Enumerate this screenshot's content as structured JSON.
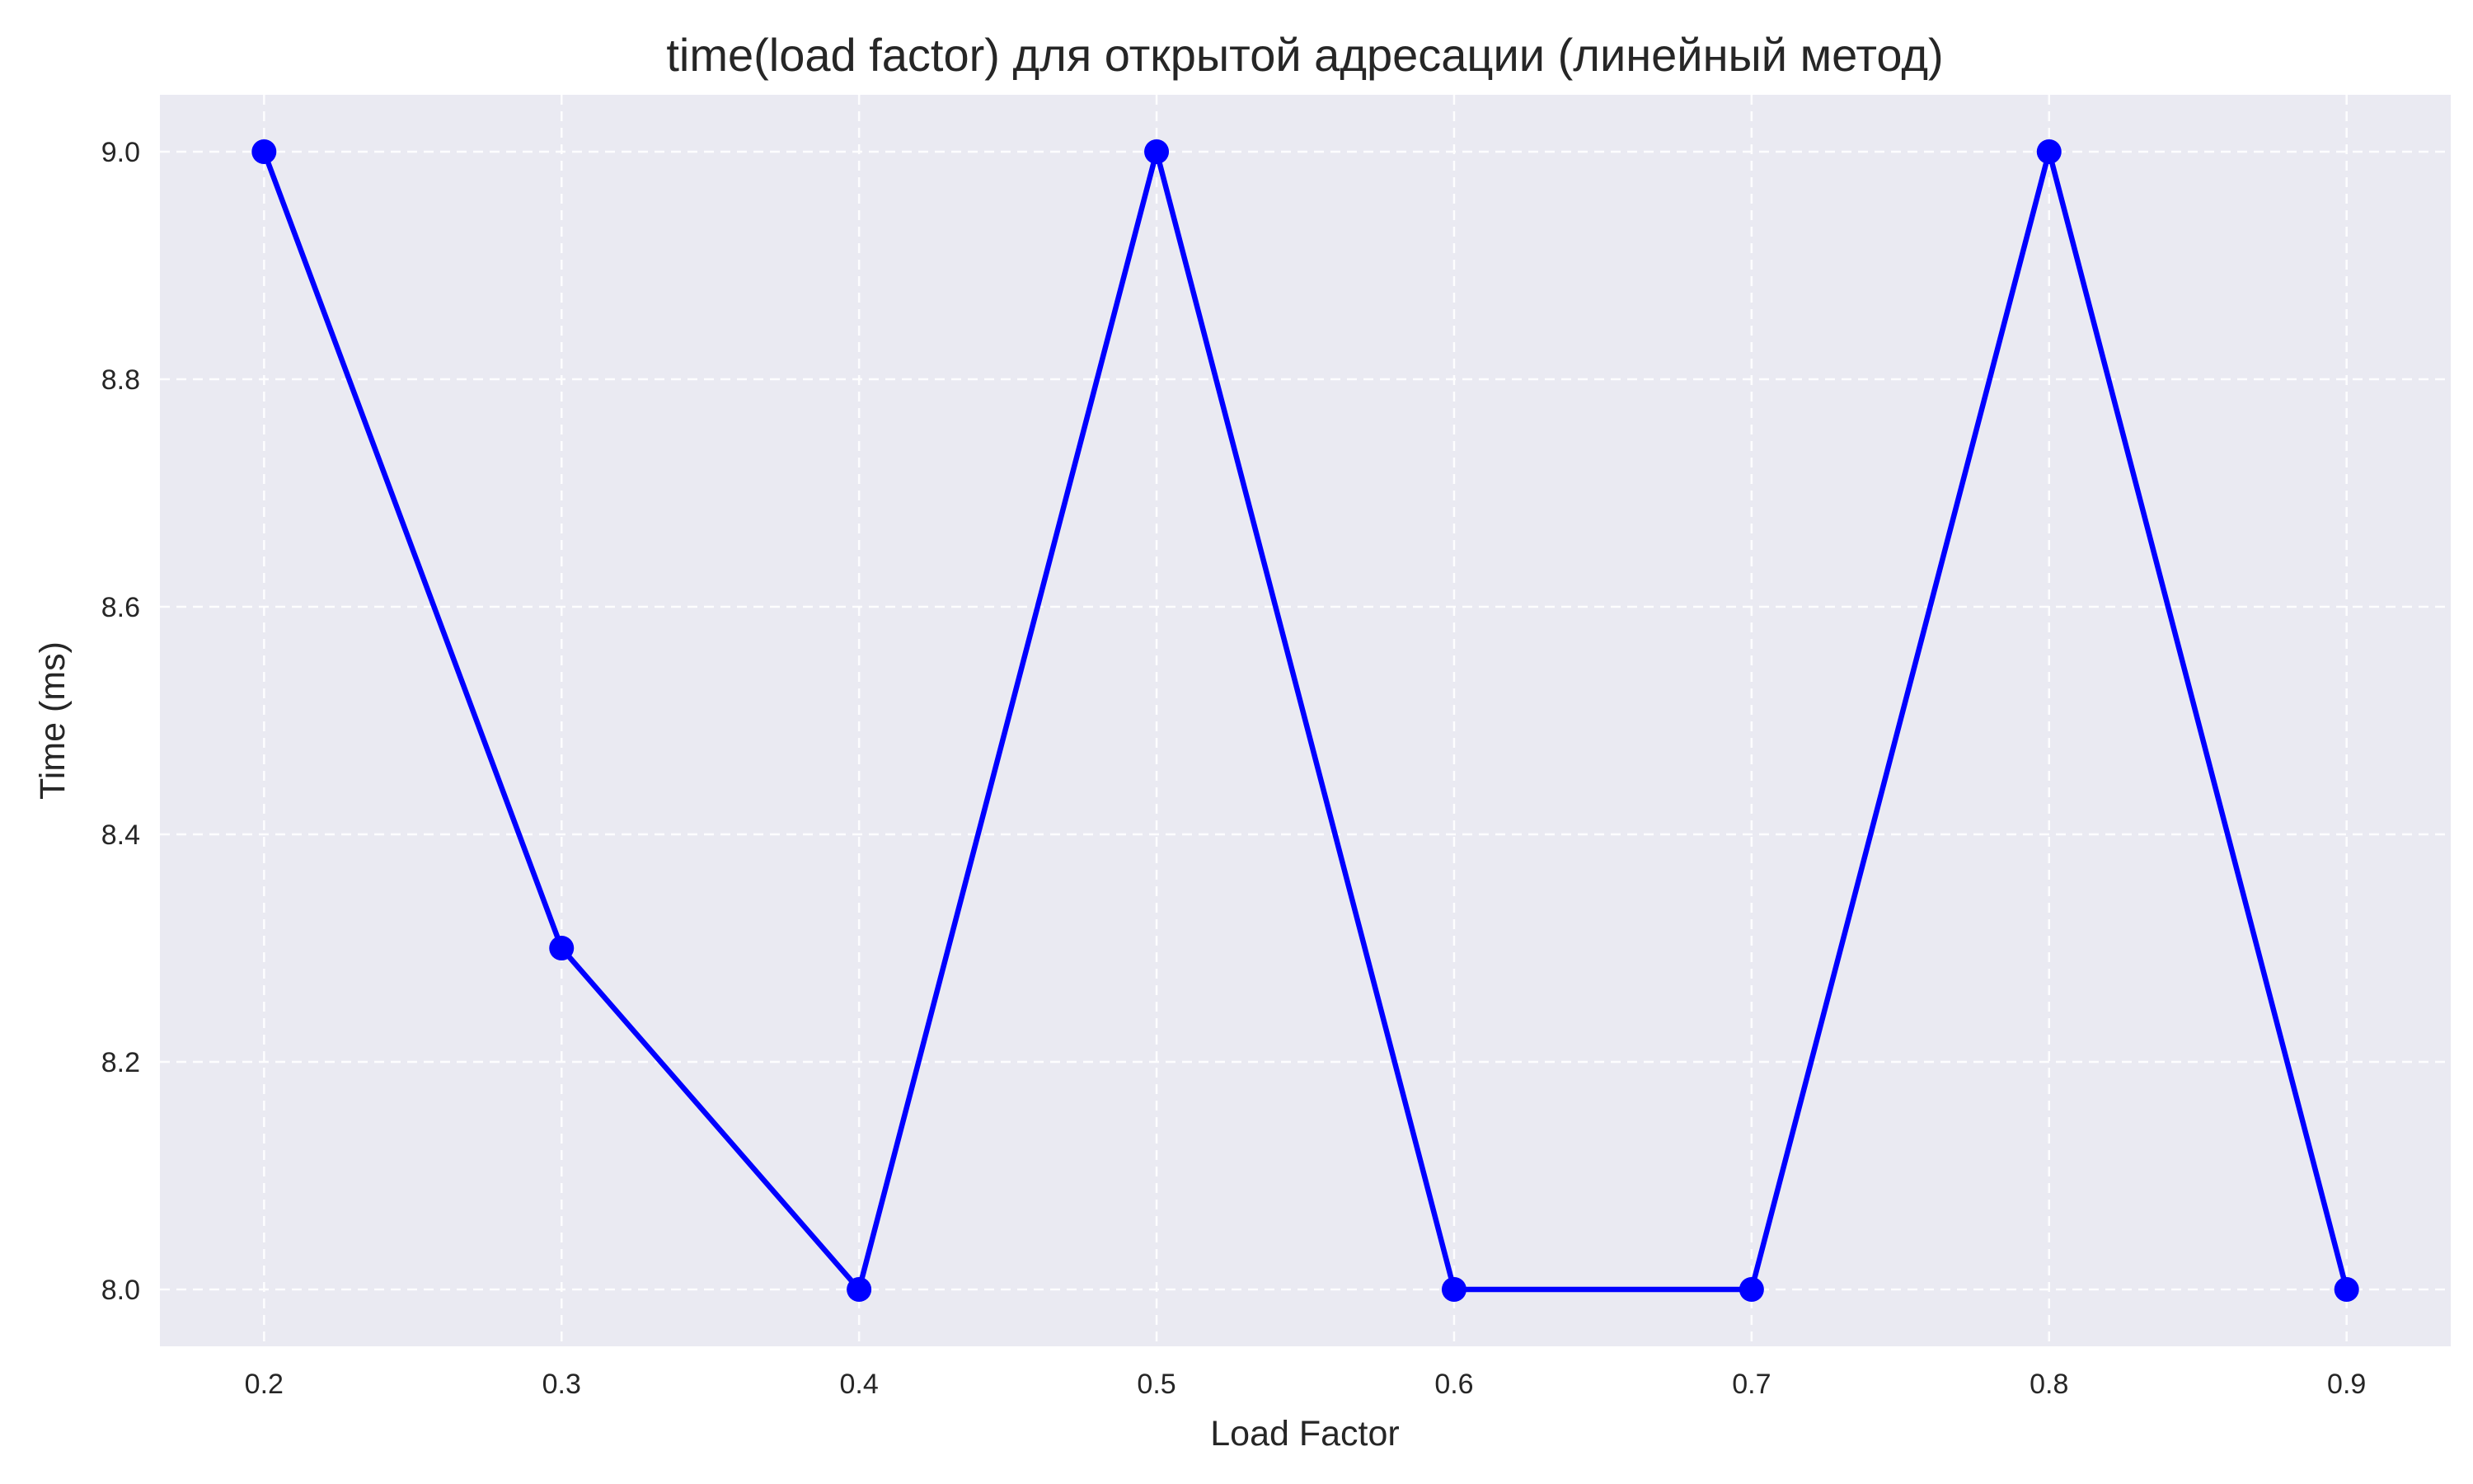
{
  "chart_data": {
    "type": "line",
    "title": "time(load factor) для открытой адресации (линейный метод)",
    "xlabel": "Load Factor",
    "ylabel": "Time (ms)",
    "x": [
      0.2,
      0.3,
      0.4,
      0.5,
      0.6,
      0.7,
      0.8,
      0.9
    ],
    "xticks": [
      "0.2",
      "0.3",
      "0.4",
      "0.5",
      "0.6",
      "0.7",
      "0.8",
      "0.9"
    ],
    "yticks": [
      "8.0",
      "8.2",
      "8.4",
      "8.6",
      "8.8",
      "9.0"
    ],
    "ytick_values": [
      8.0,
      8.2,
      8.4,
      8.6,
      8.8,
      9.0
    ],
    "xlim": [
      0.165,
      0.935
    ],
    "ylim": [
      7.95,
      9.05
    ],
    "grid": true,
    "marker": "circle",
    "series": [
      {
        "values": [
          9.0,
          8.3,
          8.0,
          9.0,
          8.0,
          8.0,
          9.0,
          8.0
        ],
        "color": "#0000ff"
      }
    ],
    "colors": {
      "plot_background": "#eaeaf2",
      "grid": "#ffffff",
      "text": "#262626"
    }
  }
}
